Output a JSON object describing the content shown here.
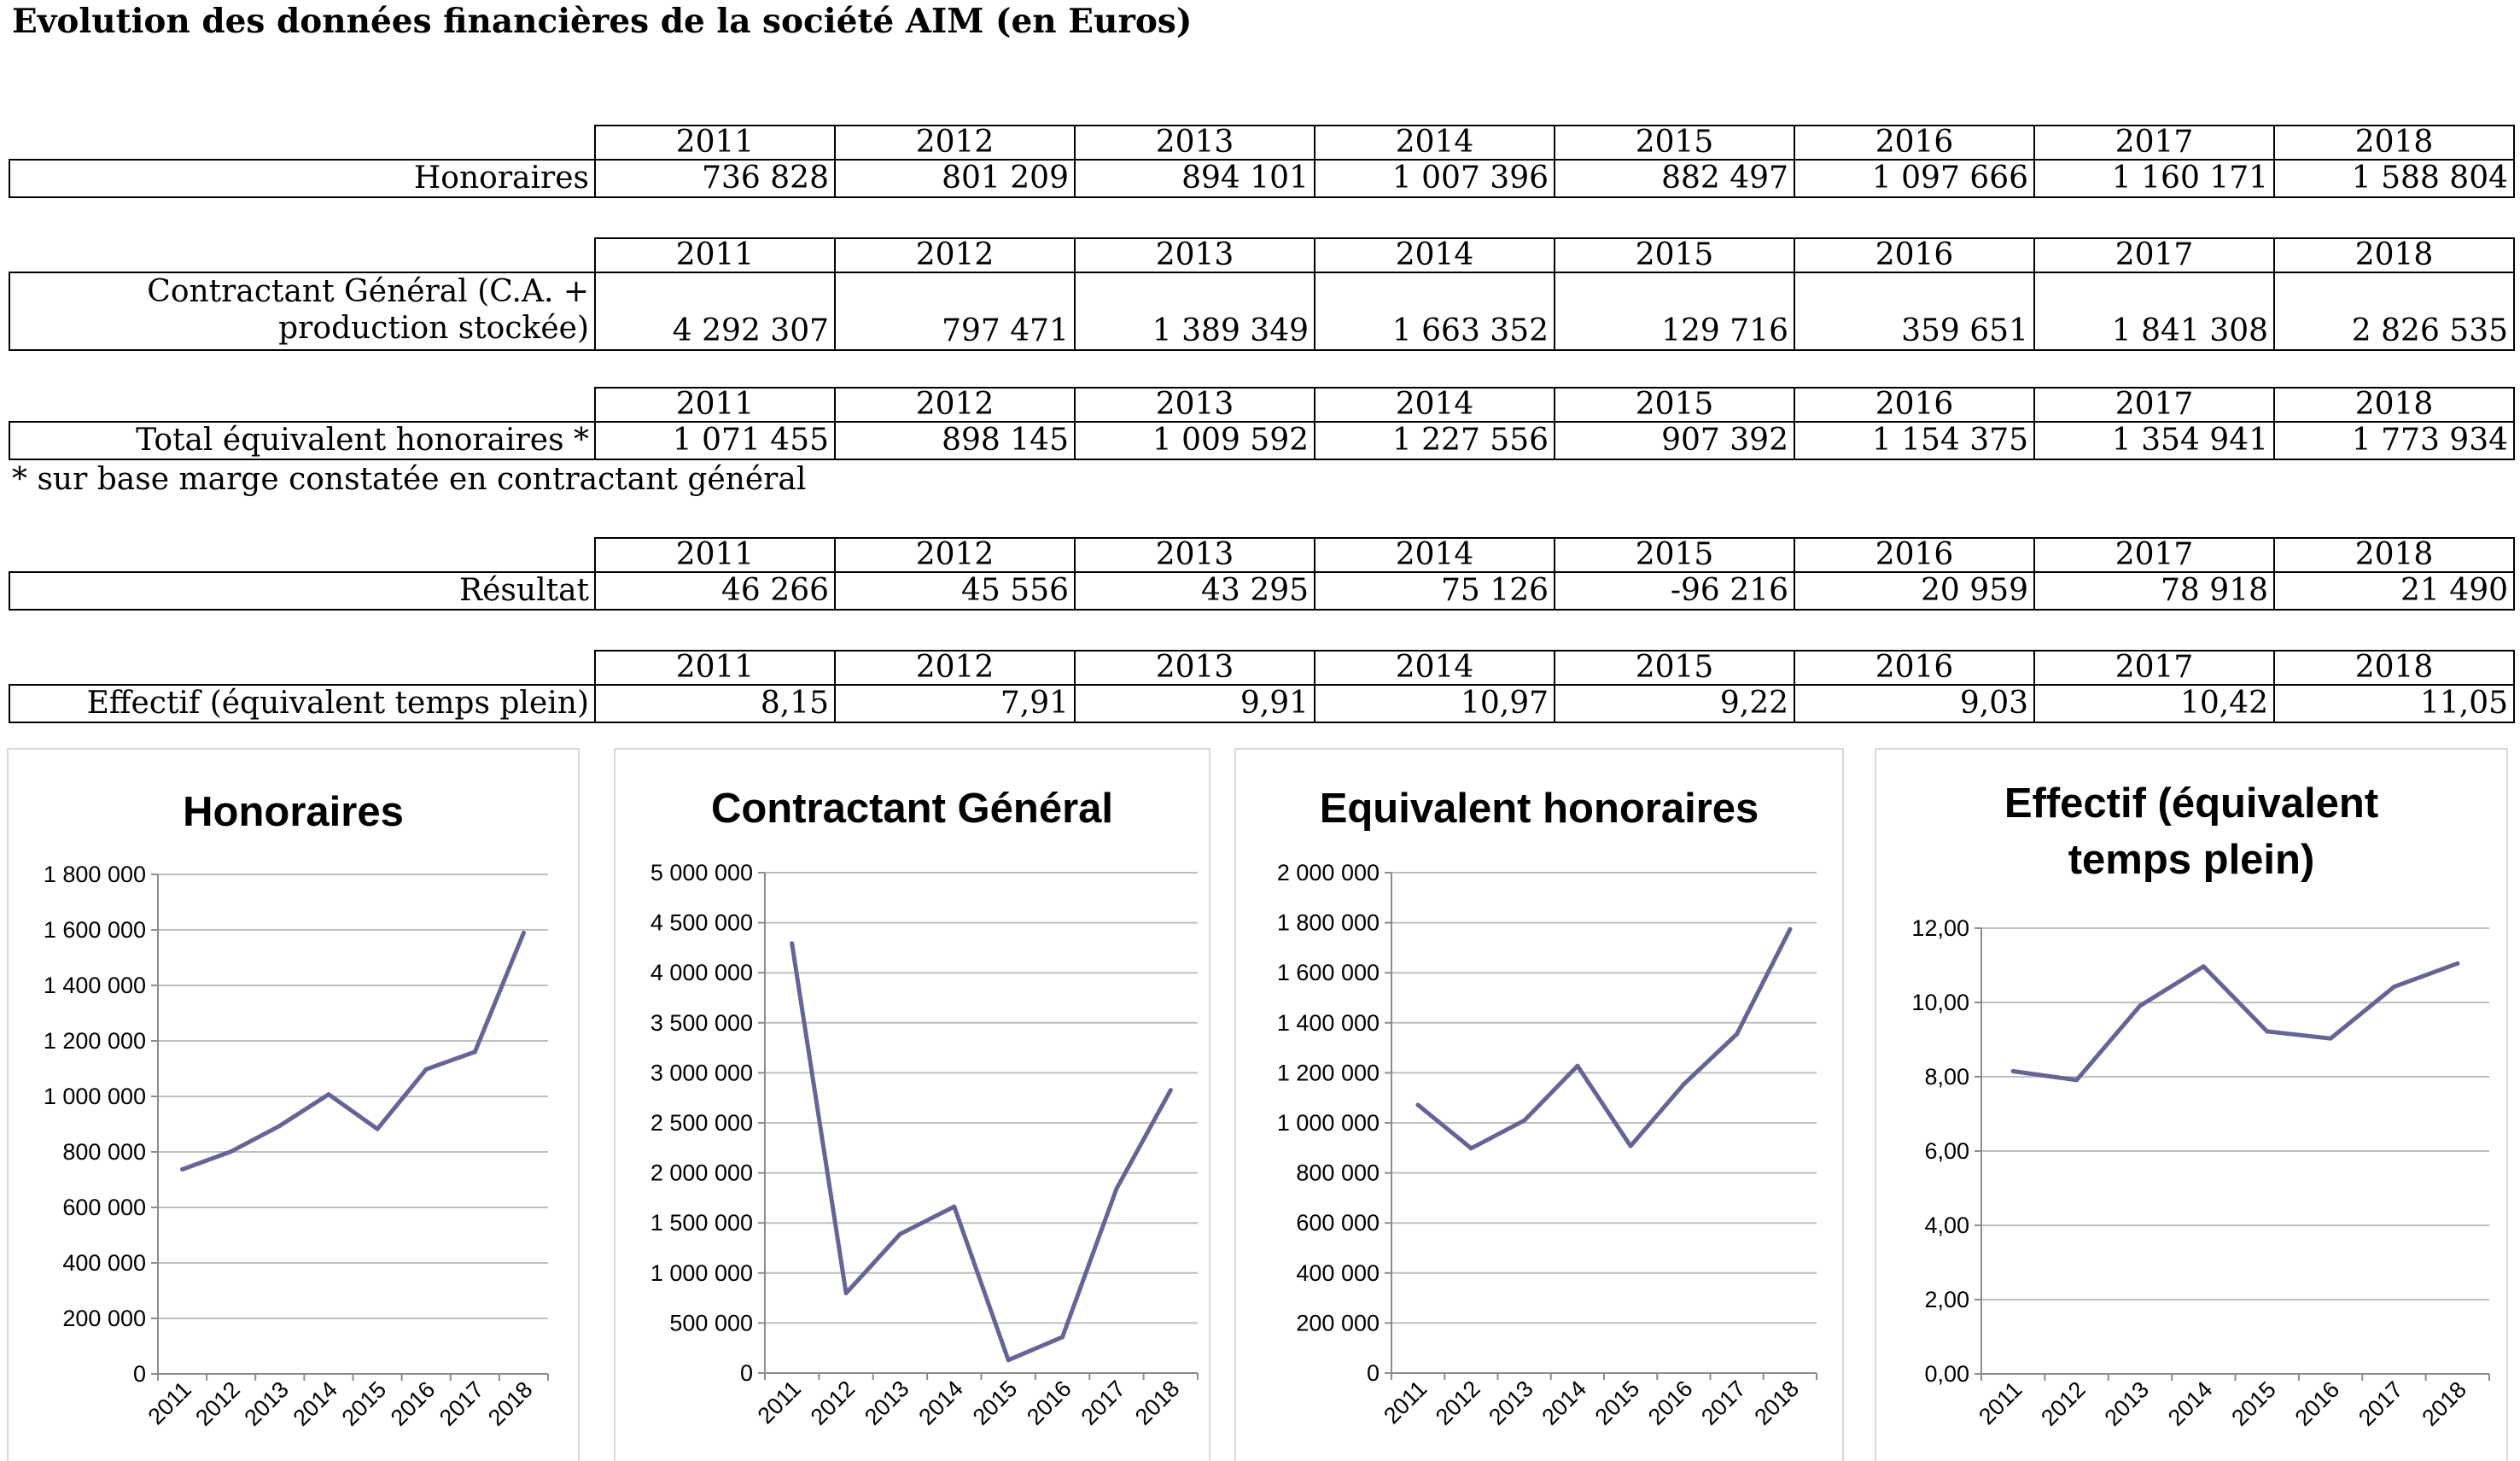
{
  "title": "Evolution des données financières de la société AIM (en Euros)",
  "years": [
    "2011",
    "2012",
    "2013",
    "2014",
    "2015",
    "2016",
    "2017",
    "2018"
  ],
  "tables": [
    {
      "label": "Honoraires",
      "values": [
        "736 828",
        "801 209",
        "894 101",
        "1 007 396",
        "882 497",
        "1 097 666",
        "1 160 171",
        "1 588 804"
      ]
    },
    {
      "label_line1": "Contractant Général (C.A. +",
      "label_line2": "production stockée)",
      "values": [
        "4 292 307",
        "797 471",
        "1 389 349",
        "1 663 352",
        "129 716",
        "359 651",
        "1 841 308",
        "2 826 535"
      ]
    },
    {
      "label": "Total équivalent honoraires *",
      "values": [
        "1 071 455",
        "898 145",
        "1 009 592",
        "1 227 556",
        "907 392",
        "1 154 375",
        "1 354 941",
        "1 773 934"
      ]
    },
    {
      "label": "Résultat",
      "values": [
        "46 266",
        "45 556",
        "43 295",
        "75 126",
        "-96 216",
        "20 959",
        "78 918",
        "21 490"
      ]
    },
    {
      "label": "Effectif (équivalent temps plein)",
      "values": [
        "8,15",
        "7,91",
        "9,91",
        "10,97",
        "9,22",
        "9,03",
        "10,42",
        "11,05"
      ]
    }
  ],
  "footnote": "* sur base marge constatée en contractant général",
  "line_color": "#646496",
  "chart_data": [
    {
      "type": "line",
      "title": "Honoraires",
      "categories": [
        "2011",
        "2012",
        "2013",
        "2014",
        "2015",
        "2016",
        "2017",
        "2018"
      ],
      "values": [
        736828,
        801209,
        894101,
        1007396,
        882497,
        1097666,
        1160171,
        1588804
      ],
      "ylim": [
        0,
        1800000
      ],
      "yticks": [
        0,
        200000,
        400000,
        600000,
        800000,
        1000000,
        1200000,
        1400000,
        1600000,
        1800000
      ],
      "ytick_labels": [
        "0",
        "200 000",
        "400 000",
        "600 000",
        "800 000",
        "1 000 000",
        "1 200 000",
        "1 400 000",
        "1 600 000",
        "1 800 000"
      ],
      "grid": true,
      "legend": "none"
    },
    {
      "type": "line",
      "title": "Contractant Général",
      "categories": [
        "2011",
        "2012",
        "2013",
        "2014",
        "2015",
        "2016",
        "2017",
        "2018"
      ],
      "values": [
        4292307,
        797471,
        1389349,
        1663352,
        129716,
        359651,
        1841308,
        2826535
      ],
      "ylim": [
        0,
        5000000
      ],
      "yticks": [
        0,
        500000,
        1000000,
        1500000,
        2000000,
        2500000,
        3000000,
        3500000,
        4000000,
        4500000,
        5000000
      ],
      "ytick_labels": [
        "0",
        "500 000",
        "1 000 000",
        "1 500 000",
        "2 000 000",
        "2 500 000",
        "3 000 000",
        "3 500 000",
        "4 000 000",
        "4 500 000",
        "5 000 000"
      ],
      "grid": true,
      "legend": "none"
    },
    {
      "type": "line",
      "title": "Equivalent honoraires",
      "categories": [
        "2011",
        "2012",
        "2013",
        "2014",
        "2015",
        "2016",
        "2017",
        "2018"
      ],
      "values": [
        1071455,
        898145,
        1009592,
        1227556,
        907392,
        1154375,
        1354941,
        1773934
      ],
      "ylim": [
        0,
        2000000
      ],
      "yticks": [
        0,
        200000,
        400000,
        600000,
        800000,
        1000000,
        1200000,
        1400000,
        1600000,
        1800000,
        2000000
      ],
      "ytick_labels": [
        "0",
        "200 000",
        "400 000",
        "600 000",
        "800 000",
        "1 000 000",
        "1 200 000",
        "1 400 000",
        "1 600 000",
        "1 800 000",
        "2 000 000"
      ],
      "grid": true,
      "legend": "none"
    },
    {
      "type": "line",
      "title_line1": "Effectif (équivalent",
      "title_line2": "temps plein)",
      "categories": [
        "2011",
        "2012",
        "2013",
        "2014",
        "2015",
        "2016",
        "2017",
        "2018"
      ],
      "values": [
        8.15,
        7.91,
        9.91,
        10.97,
        9.22,
        9.03,
        10.42,
        11.05
      ],
      "ylim": [
        0,
        12
      ],
      "yticks": [
        0,
        2,
        4,
        6,
        8,
        10,
        12
      ],
      "ytick_labels": [
        "0,00",
        "2,00",
        "4,00",
        "6,00",
        "8,00",
        "10,00",
        "12,00"
      ],
      "grid": true,
      "legend": "none"
    }
  ]
}
